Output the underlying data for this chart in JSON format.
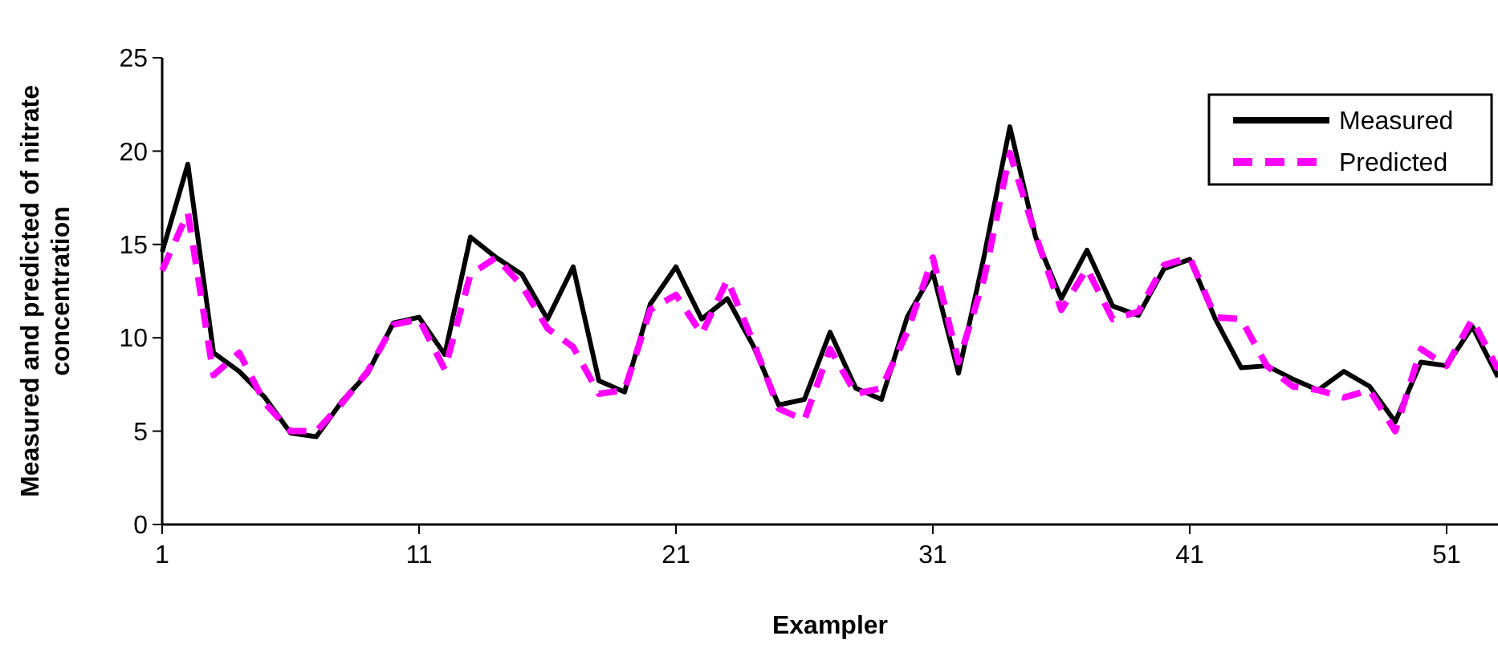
{
  "chart_data": {
    "type": "line",
    "xlabel": "Exampler",
    "ylabel": "Measured and predicted of nitrate concentration",
    "x": [
      1,
      2,
      3,
      4,
      5,
      6,
      7,
      8,
      9,
      10,
      11,
      12,
      13,
      14,
      15,
      16,
      17,
      18,
      19,
      20,
      21,
      22,
      23,
      24,
      25,
      26,
      27,
      28,
      29,
      30,
      31,
      32,
      33,
      34,
      35,
      36,
      37,
      38,
      39,
      40,
      41,
      42,
      43,
      44,
      45,
      46,
      47,
      48,
      49,
      50,
      51,
      52,
      53
    ],
    "series": [
      {
        "name": "Measured",
        "color": "#000000",
        "line_style": "solid",
        "values": [
          14.6,
          19.3,
          9.2,
          8.2,
          6.8,
          4.9,
          4.7,
          6.6,
          8.1,
          10.8,
          11.1,
          9.1,
          15.4,
          14.3,
          13.4,
          11.0,
          13.8,
          7.7,
          7.1,
          11.8,
          13.8,
          11.0,
          12.1,
          9.6,
          6.4,
          6.7,
          10.3,
          7.3,
          6.7,
          11.1,
          13.5,
          8.1,
          14.4,
          21.3,
          15.4,
          12.1,
          14.7,
          11.7,
          11.2,
          13.7,
          14.2,
          11.0,
          8.4,
          8.5,
          7.8,
          7.2,
          8.2,
          7.4,
          5.5,
          8.7,
          8.5,
          10.6,
          7.9
        ]
      },
      {
        "name": "Predicted",
        "color": "#ff00ff",
        "line_style": "dashed",
        "values": [
          13.6,
          16.7,
          8.0,
          9.2,
          6.5,
          5.0,
          5.0,
          6.5,
          8.2,
          10.7,
          11.0,
          8.3,
          13.4,
          14.3,
          12.8,
          10.5,
          9.5,
          7.0,
          7.2,
          11.5,
          12.3,
          10.2,
          13.1,
          9.8,
          6.2,
          5.6,
          9.4,
          7.0,
          7.3,
          10.3,
          14.3,
          8.7,
          13.2,
          19.9,
          15.5,
          11.5,
          13.7,
          11.0,
          11.4,
          13.9,
          14.3,
          11.1,
          11.0,
          8.5,
          7.4,
          7.2,
          6.8,
          7.2,
          5.0,
          9.4,
          8.5,
          11.0,
          8.3
        ]
      }
    ],
    "xlim": [
      1,
      53
    ],
    "xticks": [
      1,
      11,
      21,
      31,
      41,
      51
    ],
    "ylim": [
      0,
      25
    ],
    "yticks": [
      0,
      5,
      10,
      15,
      20,
      25
    ],
    "grid": false,
    "legend": "top right",
    "marker": "none"
  }
}
